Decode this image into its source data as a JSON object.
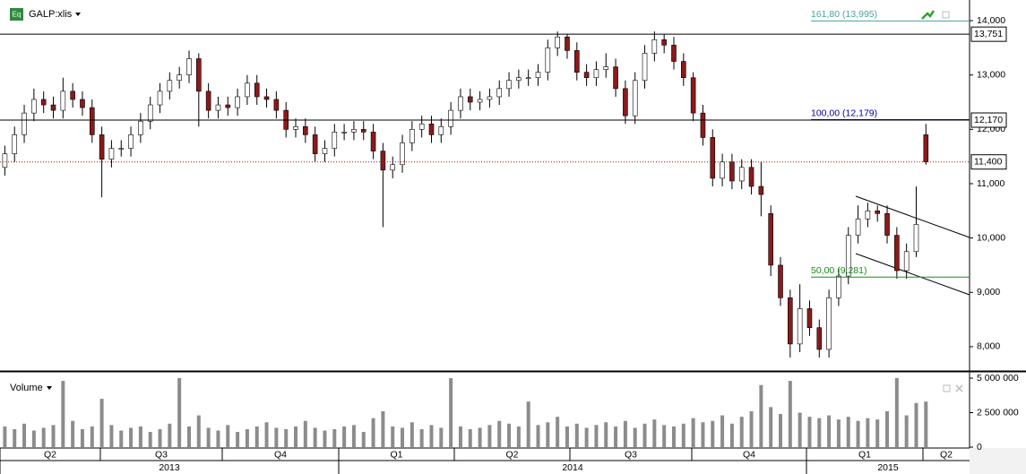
{
  "header": {
    "icon": "Eq",
    "symbol": "GALP:xlis",
    "volume_label": "Volume"
  },
  "x_axis": {
    "quarters": [
      "Q2",
      "Q3",
      "Q4",
      "Q1",
      "Q2",
      "Q3",
      "Q4",
      "Q1",
      "Q2"
    ],
    "years": [
      "2013",
      "2014",
      "2015"
    ]
  },
  "chart_data": [
    {
      "type": "candlestick",
      "open": [
        11300,
        11550,
        11900,
        12300,
        12550,
        12450,
        12350,
        12700,
        12550,
        12400,
        11900,
        11450,
        11650,
        11650,
        11900,
        12150,
        12450,
        12700,
        12900,
        13000,
        13300,
        12700,
        12350,
        12450,
        12400,
        12600,
        12850,
        12600,
        12550,
        12350,
        12000,
        12050,
        11900,
        11550,
        11650,
        11950,
        11950,
        12000,
        11950,
        11600,
        11250,
        11350,
        11750,
        12000,
        12100,
        11900,
        12050,
        12350,
        12600,
        12500,
        12550,
        12600,
        12750,
        12900,
        12950,
        12950,
        13050,
        13500,
        13700,
        13450,
        13050,
        12950,
        13100,
        13150,
        12750,
        12250,
        12900,
        13400,
        13650,
        13550,
        13250,
        12950,
        12300,
        11850,
        11100,
        11400,
        11050,
        11300,
        10950,
        10450,
        9500,
        8900,
        8050,
        8700,
        8350,
        7950,
        8900,
        9300,
        10050,
        10350,
        10500,
        10450,
        10050,
        9400,
        9750,
        11900
      ],
      "high": [
        11700,
        12050,
        12450,
        12750,
        12700,
        12600,
        12950,
        12850,
        12700,
        12550,
        12050,
        11800,
        11800,
        12050,
        12300,
        12600,
        12850,
        13050,
        13150,
        13450,
        13400,
        12850,
        12600,
        12600,
        12750,
        13000,
        13000,
        12750,
        12700,
        12500,
        12200,
        12200,
        12050,
        11800,
        12100,
        12100,
        12150,
        12150,
        12100,
        11750,
        11500,
        11900,
        12150,
        12250,
        12250,
        12200,
        12500,
        12750,
        12750,
        12700,
        12750,
        12900,
        13050,
        13100,
        13100,
        13200,
        13650,
        13800,
        13750,
        13600,
        13200,
        13250,
        13400,
        13300,
        12900,
        13050,
        13550,
        13800,
        13750,
        13700,
        13400,
        13050,
        12450,
        12000,
        11550,
        11550,
        11450,
        11450,
        11400,
        10600,
        9650,
        9050,
        9150,
        8850,
        8500,
        9050,
        9450,
        10200,
        10600,
        10650,
        10600,
        10600,
        10200,
        9900,
        10950,
        12100
      ],
      "low": [
        11150,
        11400,
        11750,
        12150,
        12300,
        12200,
        12200,
        12400,
        12250,
        11750,
        10750,
        11300,
        11500,
        11500,
        11750,
        12000,
        12300,
        12550,
        12750,
        12850,
        12050,
        12200,
        12200,
        12250,
        12250,
        12450,
        12450,
        12400,
        12200,
        11850,
        11850,
        11750,
        11400,
        11400,
        11500,
        11800,
        11800,
        11800,
        11450,
        10200,
        11100,
        11200,
        11600,
        11850,
        11750,
        11750,
        11900,
        12200,
        12350,
        12350,
        12400,
        12450,
        12600,
        12750,
        12800,
        12800,
        12900,
        13350,
        13300,
        12900,
        12800,
        12800,
        12950,
        12600,
        12100,
        12100,
        12750,
        13250,
        13400,
        13100,
        12800,
        12150,
        11700,
        10950,
        10950,
        10900,
        10900,
        10800,
        10400,
        9300,
        8750,
        7800,
        7900,
        8200,
        7800,
        7800,
        8750,
        9150,
        9900,
        10200,
        10300,
        9900,
        9250,
        9250,
        9650,
        11350
      ],
      "close": [
        11550,
        11900,
        12300,
        12550,
        12450,
        12350,
        12700,
        12550,
        12400,
        11900,
        11450,
        11650,
        11650,
        11900,
        12150,
        12450,
        12700,
        12900,
        13000,
        13300,
        12700,
        12350,
        12450,
        12400,
        12600,
        12850,
        12600,
        12550,
        12350,
        12000,
        12050,
        11900,
        11550,
        11650,
        11950,
        11950,
        12000,
        11950,
        11600,
        11250,
        11350,
        11750,
        12000,
        12100,
        11900,
        12050,
        12350,
        12600,
        12500,
        12550,
        12600,
        12750,
        12900,
        12950,
        12950,
        13050,
        13500,
        13700,
        13450,
        13050,
        12950,
        13100,
        13150,
        12750,
        12250,
        12900,
        13400,
        13650,
        13550,
        13250,
        12950,
        12300,
        11850,
        11100,
        11400,
        11050,
        11300,
        10950,
        10800,
        9500,
        8900,
        8050,
        8700,
        8350,
        7950,
        8900,
        9300,
        10050,
        10350,
        10500,
        10450,
        10050,
        9400,
        9750,
        10250,
        11400
      ],
      "up_color": "#ffffff",
      "down_color": "#8b1a1a",
      "ylim": [
        7570,
        14380
      ],
      "yticks": [
        {
          "value": 8000,
          "label": "8,000"
        },
        {
          "value": 9000,
          "label": "9,000"
        },
        {
          "value": 10000,
          "label": "10,000"
        },
        {
          "value": 11000,
          "label": "11,000"
        },
        {
          "value": 12000,
          "label": "12,000"
        },
        {
          "value": 13000,
          "label": "13,000"
        },
        {
          "value": 14000,
          "label": "14,000"
        }
      ],
      "levels": [
        {
          "value": 13751,
          "label": "13,751",
          "color": "#000000",
          "style": "solid"
        },
        {
          "value": 12170,
          "label": "12,170",
          "color": "#000000",
          "style": "solid"
        },
        {
          "value": 11400,
          "label": "11,400",
          "color": "#cc0000",
          "style": "dotted"
        }
      ],
      "fib_levels": [
        {
          "value": 13995,
          "label": "161,80 (13,995)",
          "color": "#4aa3a3"
        },
        {
          "value": 12179,
          "label": "100,00 (12,179)",
          "color": "#0000a0"
        },
        {
          "value": 9281,
          "label": "50,00 (9,281)",
          "color": "#1a8a1a"
        }
      ]
    },
    {
      "type": "bar",
      "values": [
        1500000,
        1300000,
        1700000,
        1200000,
        1400000,
        1600000,
        4800000,
        1900000,
        1300000,
        1500000,
        3500000,
        1600000,
        1200000,
        1400000,
        1500000,
        1100000,
        1300000,
        1700000,
        5000000,
        1500000,
        2300000,
        1400000,
        1200000,
        1600000,
        1100000,
        1300000,
        1500000,
        1800000,
        1400000,
        1300000,
        1500000,
        1900000,
        1400000,
        1200000,
        1300000,
        1500000,
        1600000,
        1100000,
        2100000,
        2600000,
        1500000,
        1400000,
        1800000,
        1300000,
        1600000,
        1400000,
        5000000,
        1500000,
        1300000,
        1400000,
        1600000,
        1900000,
        1700000,
        1500000,
        3300000,
        1600000,
        1800000,
        2200000,
        1500000,
        1700000,
        1400000,
        1600000,
        1800000,
        1500000,
        1900000,
        1400000,
        1700000,
        2000000,
        1600000,
        1500000,
        1700000,
        2100000,
        1800000,
        1900000,
        2300000,
        1700000,
        2200000,
        2600000,
        4500000,
        2900000,
        2400000,
        4800000,
        2500000,
        2200000,
        2100000,
        2300000,
        2000000,
        2200000,
        1900000,
        2100000,
        2000000,
        2600000,
        5000000,
        2300000,
        3200000,
        3300000
      ],
      "color": "#8c8c8c",
      "ylim": [
        0,
        5260000
      ],
      "yticks": [
        0,
        {
          "value": 2500000,
          "label": "2 500 000"
        },
        {
          "value": 5000000,
          "label": "5 000 000"
        }
      ]
    }
  ]
}
